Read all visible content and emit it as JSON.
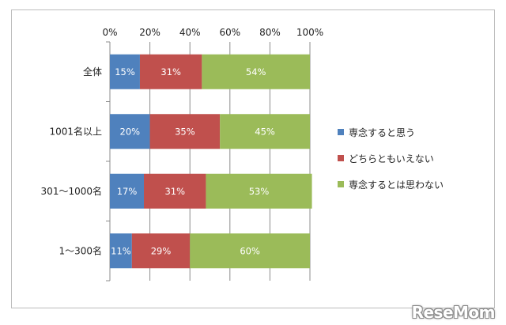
{
  "chart_data": {
    "type": "bar",
    "orientation": "horizontal",
    "stacked": true,
    "categories": [
      "全体",
      "1001名以上",
      "301～1000名",
      "1～300名"
    ],
    "series": [
      {
        "name": "専念すると思う",
        "color": "#4f81bd",
        "values": [
          15,
          20,
          17,
          11
        ],
        "labels": [
          "15%",
          "20%",
          "17%",
          "11%"
        ]
      },
      {
        "name": "どちらともいえない",
        "color": "#c0504d",
        "values": [
          31,
          35,
          31,
          29
        ],
        "labels": [
          "31%",
          "35%",
          "31%",
          "29%"
        ]
      },
      {
        "name": "専念するとは思わない",
        "color": "#9bbb59",
        "values": [
          54,
          45,
          53,
          60
        ],
        "labels": [
          "54%",
          "45%",
          "53%",
          "60%"
        ]
      }
    ],
    "xlim": [
      0,
      100
    ],
    "xticks": [
      "0%",
      "20%",
      "40%",
      "60%",
      "80%",
      "100%"
    ],
    "x_axis_position": "top",
    "grid": true,
    "legend_position": "right"
  },
  "watermark": "ReseMom"
}
